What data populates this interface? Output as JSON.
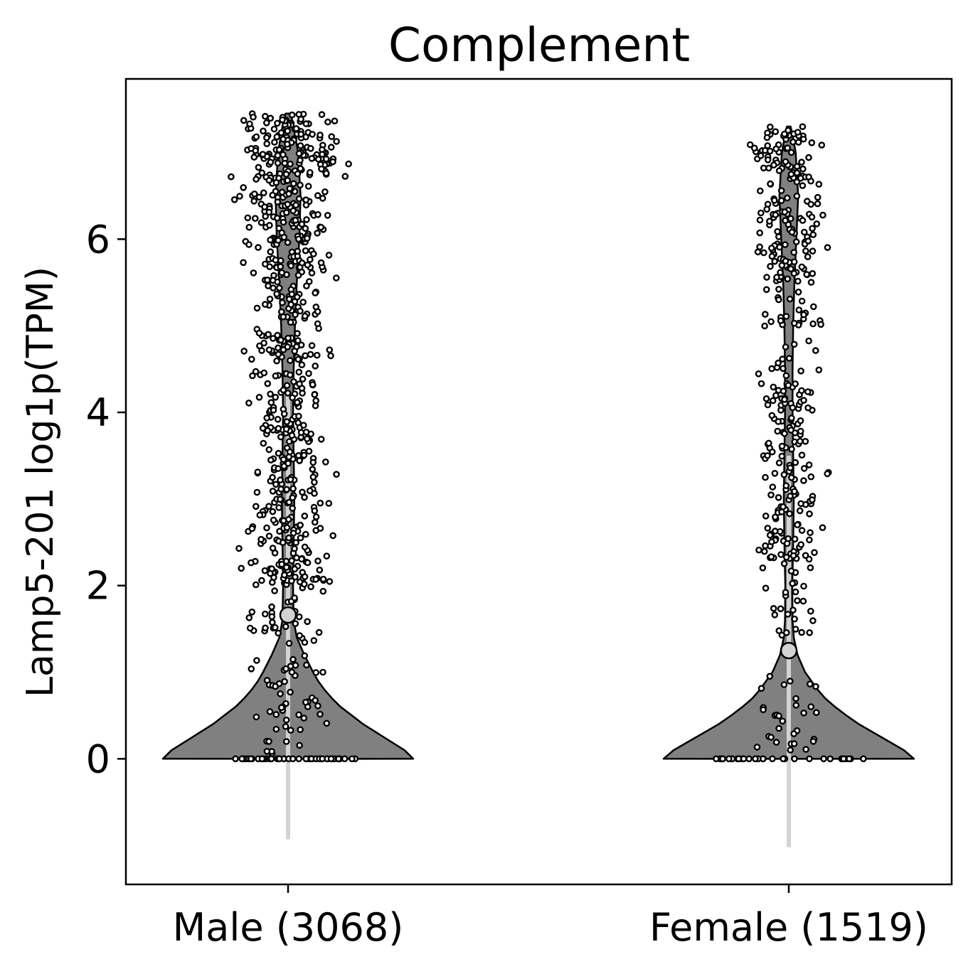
{
  "chart_data": {
    "type": "violin",
    "title": "Complement",
    "xlabel": "",
    "ylabel": "Lamp5-201 log1p(TPM)",
    "ylim": [
      -1.45,
      7.85
    ],
    "yticks": [
      0,
      2,
      4,
      6
    ],
    "ytick_labels": [
      "0",
      "2",
      "4",
      "6"
    ],
    "grid": false,
    "legend": "none",
    "colors": {
      "violin_fill": "#808080",
      "violin_edge": "#000000",
      "point_fill": "#ffffff",
      "point_edge": "#000000",
      "whisker": "#d3d3d3",
      "median": "#d3d3d3"
    },
    "categories": [
      "Male (3068)",
      "Female (1519)"
    ],
    "groups": [
      {
        "label": "Male (3068)",
        "median": 1.66,
        "whisker": [
          -0.93,
          4.25
        ],
        "ymax": 7.45,
        "density": [
          [
            0,
            1.0
          ],
          [
            0.1,
            0.93
          ],
          [
            0.2,
            0.82
          ],
          [
            0.3,
            0.71
          ],
          [
            0.4,
            0.6
          ],
          [
            0.5,
            0.51
          ],
          [
            0.6,
            0.42
          ],
          [
            0.7,
            0.35
          ],
          [
            0.8,
            0.29
          ],
          [
            0.9,
            0.24
          ],
          [
            1.0,
            0.2
          ],
          [
            1.2,
            0.13
          ],
          [
            1.4,
            0.07
          ],
          [
            1.6,
            0.045
          ],
          [
            2.0,
            0.04
          ],
          [
            2.5,
            0.045
          ],
          [
            3.0,
            0.05
          ],
          [
            3.5,
            0.045
          ],
          [
            4.0,
            0.04
          ],
          [
            4.5,
            0.045
          ],
          [
            5.0,
            0.055
          ],
          [
            5.5,
            0.07
          ],
          [
            6.0,
            0.09
          ],
          [
            6.5,
            0.1
          ],
          [
            7.0,
            0.08
          ],
          [
            7.3,
            0.045
          ],
          [
            7.45,
            0.02
          ]
        ],
        "clusters": [
          {
            "lo": 0.0,
            "hi": 0.0,
            "n": 45,
            "spread": 0.54
          },
          {
            "lo": 0.05,
            "hi": 1.2,
            "n": 50,
            "spread": 0.35
          },
          {
            "lo": 1.3,
            "hi": 2.1,
            "n": 40,
            "spread": 0.3
          },
          {
            "lo": 2.0,
            "hi": 4.3,
            "n": 240,
            "spread": 0.32
          },
          {
            "lo": 4.3,
            "hi": 5.5,
            "n": 110,
            "spread": 0.3
          },
          {
            "lo": 5.5,
            "hi": 7.45,
            "n": 310,
            "spread": 0.42
          }
        ]
      },
      {
        "label": "Female (1519)",
        "median": 1.25,
        "whisker": [
          -1.02,
          3.5
        ],
        "ymax": 7.3,
        "density": [
          [
            0,
            1.0
          ],
          [
            0.1,
            0.92
          ],
          [
            0.2,
            0.8
          ],
          [
            0.3,
            0.68
          ],
          [
            0.4,
            0.56
          ],
          [
            0.5,
            0.46
          ],
          [
            0.6,
            0.37
          ],
          [
            0.7,
            0.29
          ],
          [
            0.8,
            0.23
          ],
          [
            0.9,
            0.18
          ],
          [
            1.0,
            0.13
          ],
          [
            1.2,
            0.07
          ],
          [
            1.4,
            0.04
          ],
          [
            1.6,
            0.03
          ],
          [
            2.0,
            0.028
          ],
          [
            2.5,
            0.035
          ],
          [
            3.0,
            0.04
          ],
          [
            3.5,
            0.035
          ],
          [
            4.0,
            0.03
          ],
          [
            4.5,
            0.03
          ],
          [
            5.0,
            0.035
          ],
          [
            5.5,
            0.045
          ],
          [
            6.0,
            0.06
          ],
          [
            6.5,
            0.075
          ],
          [
            7.0,
            0.055
          ],
          [
            7.2,
            0.03
          ],
          [
            7.3,
            0.015
          ]
        ],
        "clusters": [
          {
            "lo": 0.0,
            "hi": 0.0,
            "n": 35,
            "spread": 0.6
          },
          {
            "lo": 0.05,
            "hi": 1.0,
            "n": 30,
            "spread": 0.3
          },
          {
            "lo": 1.4,
            "hi": 2.2,
            "n": 25,
            "spread": 0.2
          },
          {
            "lo": 2.2,
            "hi": 4.3,
            "n": 150,
            "spread": 0.27
          },
          {
            "lo": 4.3,
            "hi": 5.5,
            "n": 45,
            "spread": 0.25
          },
          {
            "lo": 5.5,
            "hi": 7.3,
            "n": 170,
            "spread": 0.32
          }
        ]
      }
    ]
  }
}
